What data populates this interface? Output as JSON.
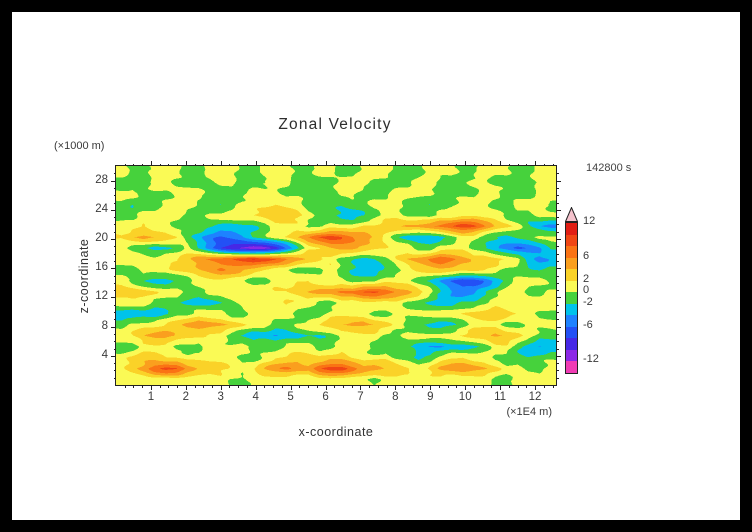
{
  "title": "Zonal Velocity",
  "timestamp": "142800 s",
  "axes": {
    "x": {
      "label": "x-coordinate",
      "unit_label": "(×1E4 m)",
      "min": 0,
      "max": 12.6,
      "major_ticks": [
        1,
        2,
        3,
        4,
        5,
        6,
        7,
        8,
        9,
        10,
        11,
        12
      ],
      "minor_step": 0.25
    },
    "z": {
      "label": "z-coordinate",
      "unit_label": "(×1000 m)",
      "min": 0,
      "max": 30,
      "major_ticks": [
        4,
        8,
        12,
        16,
        20,
        24,
        28
      ],
      "minor_step": 1
    }
  },
  "colorbar": {
    "labels": [
      12,
      6,
      2,
      0,
      -2,
      -6,
      -12
    ],
    "colors": [
      "#f03cb4",
      "#8c28e6",
      "#4628e6",
      "#2350f5",
      "#1e82ff",
      "#00c3eb",
      "#46d23c",
      "#fafa55",
      "#fad228",
      "#fa9f1e",
      "#fa7314",
      "#f04614",
      "#e11e14",
      "#f5c3cd"
    ]
  },
  "chart_data": {
    "type": "heatmap",
    "title": "Zonal Velocity",
    "xlabel": "x-coordinate (×1E4 m)",
    "ylabel": "z-coordinate (×1000 m)",
    "time_label": "142800 s",
    "x_range": [
      0,
      12.6
    ],
    "z_range": [
      0,
      30
    ],
    "levels": [
      -12,
      -10,
      -8,
      -6,
      -4,
      -2,
      0,
      2,
      4,
      6,
      8,
      10,
      12
    ],
    "values_order": "rows from bottom (z=0) to top (z=30), 40 columns spanning x range",
    "values": [
      [
        1,
        1,
        1,
        1,
        0.5,
        1,
        1,
        1,
        1,
        1,
        -0.5,
        -1,
        1,
        1,
        1,
        1,
        1,
        0.5,
        1,
        1,
        1,
        1,
        1,
        -0.5,
        1,
        1,
        1,
        1,
        1,
        1,
        0.5,
        1,
        1,
        1,
        -1,
        -1,
        1,
        1,
        1,
        1
      ],
      [
        1,
        3,
        5,
        8,
        9,
        8,
        5,
        4,
        3,
        3,
        2,
        1,
        2,
        4,
        5,
        6,
        5,
        5,
        8,
        9,
        9,
        7,
        5,
        5,
        4,
        4,
        3,
        1,
        2,
        4,
        5,
        6,
        5,
        4,
        3,
        1,
        1,
        -1,
        -1,
        1
      ],
      [
        1,
        2,
        3,
        3,
        2,
        2,
        1,
        1,
        1,
        1,
        1,
        -1,
        -1,
        1,
        2,
        2,
        3,
        2,
        2,
        3,
        3,
        2,
        1,
        1,
        1,
        -1,
        -1,
        -2,
        -1,
        1,
        2,
        2,
        1,
        1,
        -1,
        -1,
        -1,
        -2,
        -1,
        -1
      ],
      [
        -1,
        -1,
        1,
        1,
        1,
        -1,
        -1,
        -1,
        1,
        1,
        1,
        1,
        -1,
        -1,
        -1,
        1,
        1,
        1,
        -1,
        -1,
        1,
        1,
        1,
        -1,
        -1,
        -1,
        -2,
        -3,
        -4,
        -4,
        -3,
        -3,
        -2,
        -1,
        1,
        1,
        -2,
        -3,
        -4,
        -3
      ],
      [
        1,
        2,
        4,
        5,
        5,
        4,
        3,
        2,
        1,
        1,
        -1,
        -2,
        -3,
        -3,
        -4,
        -3,
        -3,
        -2,
        -2,
        -1,
        1,
        1,
        1,
        1,
        -1,
        -1,
        1,
        1,
        1,
        1,
        1,
        2,
        3,
        4,
        5,
        4,
        3,
        1,
        -1,
        -1
      ],
      [
        -1,
        1,
        1,
        1,
        2,
        3,
        5,
        6,
        5,
        4,
        3,
        2,
        1,
        1,
        -1,
        -1,
        1,
        1,
        2,
        3,
        4,
        5,
        5,
        4,
        3,
        1,
        -1,
        -2,
        -3,
        -3,
        -2,
        -1,
        1,
        1,
        1,
        -1,
        -1,
        1,
        1,
        1
      ],
      [
        -3,
        -4,
        -3,
        -3,
        -2,
        -1,
        -1,
        1,
        1,
        1,
        -1,
        -1,
        1,
        1,
        1,
        1,
        -1,
        -1,
        -1,
        1,
        1,
        1,
        1,
        -1,
        -1,
        1,
        1,
        1,
        1,
        1,
        1,
        2,
        3,
        4,
        4,
        3,
        2,
        1,
        -1,
        -1
      ],
      [
        1,
        1,
        1,
        -1,
        -1,
        -1,
        -2,
        -3,
        -3,
        -2,
        -1,
        1,
        1,
        1,
        2,
        2,
        1,
        1,
        -1,
        -1,
        1,
        1,
        2,
        2,
        1,
        1,
        -1,
        -1,
        -2,
        -3,
        -3,
        -2,
        -2,
        -1,
        1,
        1,
        1,
        2,
        2,
        1
      ],
      [
        4,
        4,
        3,
        2,
        1,
        1,
        -1,
        -1,
        1,
        1,
        1,
        1,
        1,
        1,
        2,
        2,
        3,
        4,
        5,
        5,
        6,
        6,
        8,
        9,
        8,
        6,
        5,
        3,
        1,
        -2,
        -4,
        -5,
        -4,
        -2,
        -1,
        1,
        1,
        -1,
        -1,
        1
      ],
      [
        1,
        -1,
        -2,
        -3,
        -3,
        -2,
        -1,
        1,
        1,
        1,
        1,
        1,
        -1,
        -1,
        1,
        1,
        2,
        2,
        1,
        1,
        1,
        -1,
        -1,
        -1,
        1,
        1,
        1,
        -1,
        -2,
        -4,
        -6,
        -8,
        -8,
        -6,
        -3,
        -1,
        1,
        1,
        1,
        -1
      ],
      [
        -1,
        -1,
        1,
        1,
        1,
        2,
        3,
        4,
        5,
        6,
        5,
        4,
        3,
        2,
        1,
        1,
        -1,
        -1,
        -1,
        1,
        -1,
        -2,
        -3,
        -3,
        -2,
        -1,
        1,
        2,
        3,
        4,
        4,
        3,
        3,
        2,
        1,
        -1,
        -1,
        -2,
        -2,
        -1
      ],
      [
        1,
        1,
        1,
        1,
        2,
        2,
        3,
        5,
        6,
        7,
        8,
        9,
        10,
        9,
        8,
        6,
        5,
        4,
        3,
        2,
        -1,
        -2,
        -3,
        -2,
        -1,
        2,
        4,
        5,
        6,
        7,
        6,
        5,
        4,
        4,
        3,
        2,
        1,
        -3,
        -5,
        -4
      ],
      [
        1,
        -1,
        -2,
        -3,
        -2,
        -1,
        1,
        -2,
        -5,
        -8,
        -10,
        -11,
        -12,
        -11,
        -9,
        -6,
        -3,
        1,
        2,
        4,
        5,
        5,
        4,
        3,
        2,
        1,
        1,
        -1,
        -1,
        1,
        1,
        1,
        -1,
        -2,
        -4,
        -5,
        -6,
        -5,
        -4,
        -2
      ],
      [
        2,
        4,
        5,
        4,
        3,
        2,
        -1,
        -3,
        -5,
        -6,
        -5,
        -4,
        -2,
        -1,
        1,
        2,
        4,
        6,
        8,
        9,
        8,
        6,
        5,
        4,
        2,
        -1,
        -3,
        -4,
        -4,
        -3,
        -1,
        1,
        1,
        -1,
        -2,
        -3,
        -2,
        -1,
        1,
        1
      ],
      [
        1,
        1,
        2,
        1,
        1,
        -1,
        -1,
        -1,
        -2,
        -3,
        -3,
        -2,
        -2,
        -1,
        1,
        1,
        1,
        -1,
        -1,
        1,
        1,
        1,
        2,
        2,
        3,
        4,
        5,
        5,
        6,
        7,
        8,
        9,
        8,
        6,
        4,
        3,
        1,
        -2,
        -4,
        -5
      ],
      [
        -1,
        -1,
        1,
        1,
        1,
        1,
        -1,
        -1,
        1,
        1,
        1,
        1,
        2,
        3,
        4,
        4,
        3,
        1,
        -1,
        -2,
        -3,
        -3,
        -2,
        -1,
        1,
        1,
        -1,
        -1,
        -1,
        1,
        1,
        2,
        2,
        1,
        1,
        -1,
        -1,
        -1,
        1,
        1
      ],
      [
        -1,
        -2,
        -1,
        -1,
        1,
        1,
        1,
        -1,
        -1,
        -2,
        -1,
        1,
        1,
        1,
        2,
        1,
        1,
        -1,
        -1,
        -1,
        -2,
        -1,
        -1,
        1,
        1,
        1,
        -1,
        -1,
        -2,
        -2,
        -1,
        1,
        1,
        1,
        -1,
        -1,
        1,
        1,
        1,
        -1
      ],
      [
        1,
        1,
        -1,
        -1,
        -1,
        1,
        1,
        1,
        -1,
        -1,
        -1,
        -1,
        1,
        1,
        1,
        -1,
        -1,
        -2,
        -1,
        -1,
        1,
        1,
        -1,
        -1,
        -1,
        1,
        1,
        1,
        1,
        -1,
        -1,
        -1,
        -1,
        1,
        1,
        -1,
        -1,
        -1,
        1,
        1
      ],
      [
        -1,
        -1,
        -1,
        1,
        1,
        -1,
        -1,
        -1,
        -1,
        1,
        1,
        -1,
        -1,
        -1,
        1,
        1,
        -1,
        -1,
        -1,
        -1,
        1,
        1,
        1,
        -1,
        -1,
        -1,
        -1,
        1,
        1,
        -1,
        -1,
        -1,
        1,
        1,
        -1,
        -1,
        -1,
        -1,
        1,
        1
      ],
      [
        1,
        -1,
        -1,
        1,
        1,
        1,
        -1,
        -1,
        1,
        1,
        1,
        -1,
        -1,
        1,
        1,
        1,
        -1,
        -1,
        1,
        1,
        -1,
        -1,
        1,
        1,
        1,
        -1,
        -1,
        -1,
        1,
        1,
        1,
        -1,
        -1,
        1,
        1,
        1,
        -1,
        -1,
        1,
        1
      ]
    ]
  }
}
